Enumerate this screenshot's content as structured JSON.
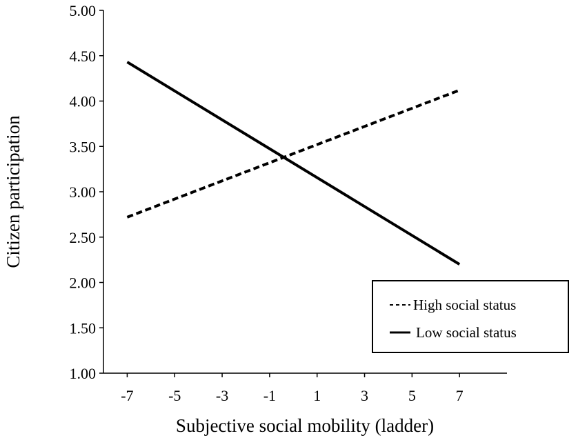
{
  "chart_data": {
    "type": "line",
    "title": "",
    "xlabel": "Subjective social mobility (ladder)",
    "ylabel": "Citizen participation",
    "x_ticks": [
      "-7",
      "-5",
      "-3",
      "-1",
      "1",
      "3",
      "5",
      "7"
    ],
    "y_ticks": [
      "1.00",
      "1.50",
      "2.00",
      "2.50",
      "3.00",
      "3.50",
      "4.00",
      "4.50",
      "5.00"
    ],
    "xlim": [
      -8,
      9
    ],
    "ylim": [
      1.0,
      5.0
    ],
    "grid": false,
    "legend_position": "bottom-right",
    "series": [
      {
        "name": "High social status",
        "line_style": "dashed",
        "color": "#000000",
        "x": [
          -7,
          7
        ],
        "y": [
          2.72,
          4.12
        ]
      },
      {
        "name": "Low social status",
        "line_style": "solid",
        "color": "#000000",
        "x": [
          -7,
          7
        ],
        "y": [
          4.43,
          2.2
        ]
      }
    ]
  }
}
